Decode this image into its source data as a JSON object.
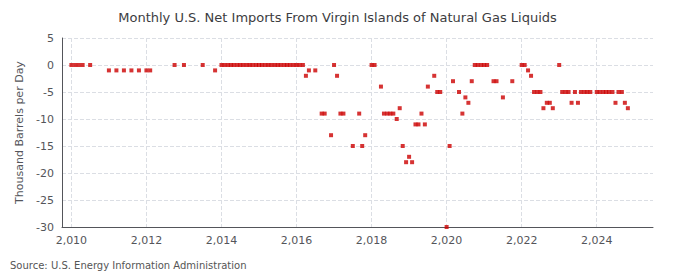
{
  "chart_data": {
    "type": "scatter",
    "title": "Monthly U.S. Net Imports From Virgin Islands of Natural Gas Liquids",
    "ylabel": "Thousand Barrels per Day",
    "annotations": [
      "Source: U.S. Energy Information Administration"
    ],
    "xlim": [
      2009.75,
      2025.5
    ],
    "ylim": [
      -30,
      5
    ],
    "xticks": [
      2010,
      2012,
      2014,
      2016,
      2018,
      2020,
      2022,
      2024
    ],
    "yticks": [
      5,
      0,
      -5,
      -10,
      -15,
      -20,
      -25,
      -30
    ],
    "grid": true,
    "marker": "square",
    "color": "#cc0000",
    "x": [
      2010.0,
      2010.1,
      2010.2,
      2010.3,
      2010.5,
      2011.0,
      2011.2,
      2011.4,
      2011.6,
      2011.8,
      2012.0,
      2012.1,
      2012.75,
      2013.0,
      2013.5,
      2013.83,
      2014.0,
      2014.08,
      2014.17,
      2014.25,
      2014.33,
      2014.42,
      2014.5,
      2014.58,
      2014.67,
      2014.75,
      2014.83,
      2014.92,
      2015.0,
      2015.08,
      2015.17,
      2015.25,
      2015.33,
      2015.42,
      2015.5,
      2015.58,
      2015.67,
      2015.75,
      2015.83,
      2015.92,
      2016.0,
      2016.08,
      2016.17,
      2016.25,
      2016.33,
      2016.5,
      2016.67,
      2016.75,
      2016.92,
      2017.0,
      2017.08,
      2017.17,
      2017.25,
      2017.5,
      2017.67,
      2017.75,
      2017.83,
      2018.0,
      2018.08,
      2018.25,
      2018.33,
      2018.42,
      2018.5,
      2018.58,
      2018.67,
      2018.75,
      2018.83,
      2018.92,
      2019.0,
      2019.08,
      2019.17,
      2019.25,
      2019.33,
      2019.42,
      2019.5,
      2019.67,
      2019.75,
      2019.83,
      2020.0,
      2020.08,
      2020.17,
      2020.33,
      2020.42,
      2020.5,
      2020.58,
      2020.67,
      2020.75,
      2020.83,
      2020.92,
      2021.0,
      2021.08,
      2021.25,
      2021.33,
      2021.5,
      2021.75,
      2022.0,
      2022.08,
      2022.17,
      2022.25,
      2022.33,
      2022.42,
      2022.5,
      2022.58,
      2022.67,
      2022.75,
      2022.83,
      2023.0,
      2023.08,
      2023.17,
      2023.25,
      2023.33,
      2023.42,
      2023.5,
      2023.58,
      2023.67,
      2023.75,
      2023.83,
      2024.0,
      2024.08,
      2024.17,
      2024.25,
      2024.33,
      2024.42,
      2024.5,
      2024.58,
      2024.67,
      2024.75,
      2024.83
    ],
    "values": [
      0,
      0,
      0,
      0,
      0,
      -1,
      -1,
      -1,
      -1,
      -1,
      -1,
      -1,
      0,
      0,
      0,
      -1,
      0,
      0,
      0,
      0,
      0,
      0,
      0,
      0,
      0,
      0,
      0,
      0,
      0,
      0,
      0,
      0,
      0,
      0,
      0,
      0,
      0,
      0,
      0,
      0,
      0,
      0,
      0,
      -2,
      -1,
      -1,
      -9,
      -9,
      -13,
      0,
      -2,
      -9,
      -9,
      -15,
      -9,
      -15,
      -13,
      0,
      0,
      -4,
      -9,
      -9,
      -9,
      -9,
      -10,
      -8,
      -15,
      -18,
      -17,
      -18,
      -11,
      -11,
      -9,
      -11,
      -4,
      -2,
      -5,
      -5,
      -30,
      -15,
      -3,
      -5,
      -9,
      -6,
      -7,
      -3,
      0,
      0,
      0,
      0,
      0,
      -3,
      -3,
      -6,
      -3,
      0,
      0,
      -1,
      -2,
      -5,
      -5,
      -5,
      -8,
      -7,
      -7,
      -8,
      0,
      -5,
      -5,
      -5,
      -7,
      -5,
      -7,
      -5,
      -5,
      -5,
      -5,
      -5,
      -5,
      -5,
      -5,
      -5,
      -5,
      -7,
      -5,
      -5,
      -7,
      -8
    ]
  }
}
